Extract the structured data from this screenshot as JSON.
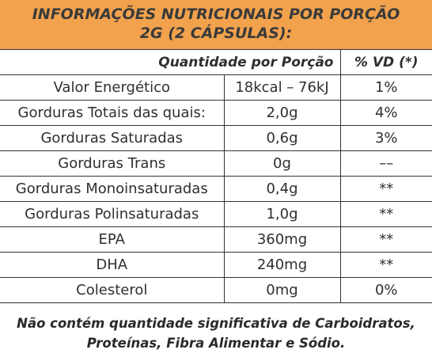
{
  "header": {
    "title": [
      "INFORMAÇÕES NUTRICIONAIS POR PORÇÃO",
      "2G (2 CÁPSULAS):"
    ]
  },
  "table": {
    "columns": [
      "Quantidade por Porção",
      "% VD (*)"
    ],
    "rows": [
      [
        "Valor Energético",
        "18kcal – 76kJ",
        "1%"
      ],
      [
        "Gorduras Totais das quais:",
        "2,0g",
        "4%"
      ],
      [
        "Gorduras Saturadas",
        "0,6g",
        "3%"
      ],
      [
        "Gorduras Trans",
        "0g",
        "––"
      ],
      [
        "Gorduras Monoinsaturadas",
        "0,4g",
        "**"
      ],
      [
        "Gorduras Polinsaturadas",
        "1,0g",
        "**"
      ],
      [
        "EPA",
        "360mg",
        "**"
      ],
      [
        "DHA",
        "240mg",
        "**"
      ],
      [
        "Colesterol",
        "0mg",
        "0%"
      ]
    ]
  },
  "footer": [
    "Não contém quantidade significativa de Carboidratos,",
    "Proteínas, Fibra Alimentar e Sódio."
  ]
}
